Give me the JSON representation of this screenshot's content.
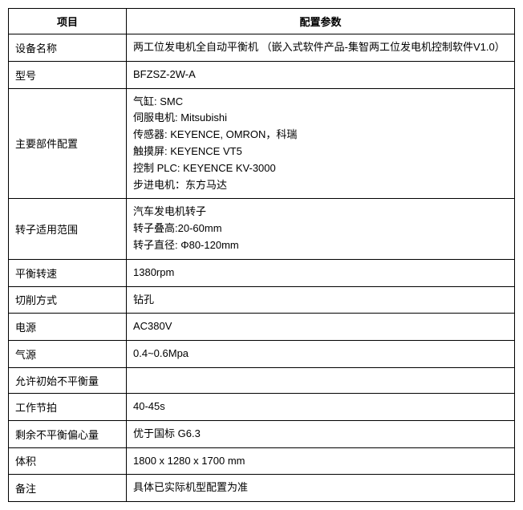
{
  "table": {
    "header": {
      "col1": "项目",
      "col2": "配置参数"
    },
    "rows": [
      {
        "label": "设备名称",
        "value": "两工位发电机全自动平衡机 （嵌入式软件产品-集智两工位发电机控制软件V1.0）"
      },
      {
        "label": "型号",
        "value": "BFZSZ-2W-A"
      },
      {
        "label": "主要部件配置",
        "value": "气缸: SMC\n伺服电机: Mitsubishi\n传感器: KEYENCE, OMRON，科瑞\n触摸屏: KEYENCE VT5\n控制 PLC: KEYENCE KV-3000\n步进电机：东方马达"
      },
      {
        "label": "转子适用范围",
        "value": "汽车发电机转子\n转子叠高:20-60mm\n转子直径: Φ80-120mm"
      },
      {
        "label": "平衡转速",
        "value": "1380rpm"
      },
      {
        "label": " 切削方式",
        "value": "钻孔"
      },
      {
        "label": "电源",
        "value": "AC380V"
      },
      {
        "label": "气源",
        "value": "0.4~0.6Mpa"
      },
      {
        "label": "允许初始不平衡量",
        "value": ""
      },
      {
        "label": "工作节拍",
        "value": "40-45s"
      },
      {
        "label": "剩余不平衡偏心量",
        "value": "优于国标  G6.3"
      },
      {
        "label": "体积",
        "value": "1800 x 1280 x 1700 mm"
      },
      {
        "label": "备注",
        "value": "具体已实际机型配置为准"
      }
    ]
  }
}
